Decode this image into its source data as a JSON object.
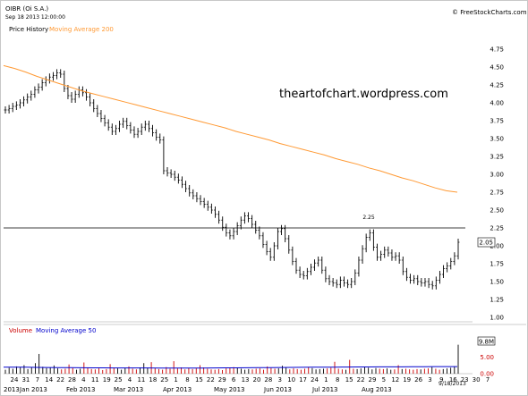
{
  "header": {
    "symbol": "OIBR (Oi S.A.)",
    "date": "Sep 18 2013 12:00:00",
    "credit": "© FreeStockCharts.com"
  },
  "legend": {
    "price_label": "Price History",
    "ma_label": "Moving Average 200",
    "volume_label": "Volume",
    "vol_ma_label": "Moving Average 50"
  },
  "watermark": "theartofchart.wordpress.com",
  "date_stamp": "9/18/2013",
  "colors": {
    "price": "#000000",
    "ma200": "#ff9933",
    "ma50": "#0000cc",
    "volume_down": "#cc0000",
    "volume_up": "#000000",
    "resistance": "#000000"
  },
  "chart_data": {
    "type": "line",
    "price_axis": {
      "ticks": [
        "4.75",
        "4.50",
        "4.25",
        "4.00",
        "3.75",
        "3.50",
        "3.25",
        "3.00",
        "2.75",
        "2.50",
        "2.25",
        "2.00",
        "1.75",
        "1.50",
        "1.25",
        "1.00"
      ],
      "ylim": [
        1.0,
        4.75
      ]
    },
    "volume_axis": {
      "ticks": [
        "9.8M",
        "5.00",
        "0.00"
      ],
      "ylim": [
        0,
        9.8
      ]
    },
    "x_ticks": [
      "24",
      "31",
      "7",
      "14",
      "22",
      "28",
      "4",
      "11",
      "19",
      "25",
      "4",
      "11",
      "18",
      "25",
      "1",
      "8",
      "15",
      "22",
      "29",
      "6",
      "13",
      "20",
      "28",
      "3",
      "10",
      "17",
      "24",
      "1",
      "8",
      "15",
      "22",
      "29",
      "5",
      "12",
      "19",
      "26",
      "3",
      "9",
      "16",
      "23",
      "30",
      "7"
    ],
    "month_labels": [
      "2013",
      "Jan 2013",
      "Feb 2013",
      "Mar 2013",
      "Apr 2013",
      "May 2013",
      "Jun 2013",
      "Jul 2013",
      "Aug 2013"
    ],
    "resistance_level": 2.25,
    "resistance_label": "2.25",
    "last_value": "2.05",
    "price_series": [
      3.9,
      3.92,
      3.95,
      3.97,
      4.0,
      4.04,
      4.08,
      4.12,
      4.18,
      4.22,
      4.28,
      4.32,
      4.36,
      4.38,
      4.42,
      4.4,
      4.2,
      4.1,
      4.05,
      4.12,
      4.18,
      4.14,
      4.08,
      4.0,
      3.92,
      3.85,
      3.78,
      3.72,
      3.66,
      3.6,
      3.64,
      3.7,
      3.74,
      3.68,
      3.62,
      3.56,
      3.6,
      3.66,
      3.7,
      3.64,
      3.58,
      3.52,
      3.48,
      3.05,
      3.02,
      3.0,
      2.96,
      2.92,
      2.86,
      2.8,
      2.74,
      2.7,
      2.66,
      2.62,
      2.58,
      2.54,
      2.5,
      2.44,
      2.36,
      2.26,
      2.18,
      2.14,
      2.2,
      2.28,
      2.36,
      2.42,
      2.38,
      2.3,
      2.22,
      2.14,
      2.02,
      1.92,
      1.84,
      2.0,
      2.2,
      2.24,
      2.1,
      1.94,
      1.78,
      1.66,
      1.6,
      1.58,
      1.64,
      1.7,
      1.76,
      1.8,
      1.66,
      1.54,
      1.5,
      1.48,
      1.46,
      1.52,
      1.48,
      1.46,
      1.5,
      1.62,
      1.8,
      1.96,
      2.12,
      2.18,
      1.98,
      1.84,
      1.88,
      1.94,
      1.9,
      1.84,
      1.86,
      1.8,
      1.64,
      1.56,
      1.52,
      1.54,
      1.5,
      1.48,
      1.5,
      1.46,
      1.44,
      1.52,
      1.6,
      1.68,
      1.72,
      1.78,
      1.86,
      2.05
    ],
    "ma200_series": [
      4.52,
      4.48,
      4.43,
      4.37,
      4.32,
      4.27,
      4.22,
      4.17,
      4.13,
      4.09,
      4.05,
      4.01,
      3.97,
      3.93,
      3.89,
      3.85,
      3.81,
      3.77,
      3.73,
      3.69,
      3.65,
      3.6,
      3.56,
      3.52,
      3.48,
      3.43,
      3.39,
      3.35,
      3.31,
      3.27,
      3.22,
      3.18,
      3.14,
      3.09,
      3.05,
      3.0,
      2.95,
      2.91,
      2.86,
      2.81,
      2.77,
      2.75
    ],
    "volume_series": [
      1.2,
      1.8,
      1.5,
      2.2,
      1.9,
      2.6,
      1.4,
      2.0,
      3.2,
      6.0,
      2.1,
      1.7,
      1.9,
      2.5,
      1.6,
      1.3,
      1.5,
      2.8,
      1.7,
      1.2,
      1.5,
      3.4,
      1.8,
      1.4,
      1.3,
      1.6,
      1.1,
      1.4,
      2.9,
      1.8,
      1.6,
      1.2,
      1.7,
      2.2,
      1.5,
      1.3,
      1.9,
      3.2,
      1.8,
      3.5,
      1.6,
      1.4,
      1.2,
      2.0,
      1.5,
      3.8,
      1.6,
      1.9,
      1.3,
      1.7,
      1.4,
      1.6,
      2.6,
      1.9,
      1.5,
      1.3,
      1.2,
      1.4,
      1.1,
      1.6,
      1.9,
      2.0,
      1.8,
      1.5,
      1.2,
      1.4,
      1.3,
      1.5,
      1.6,
      1.2,
      2.2,
      1.7,
      1.5,
      1.6,
      2.4,
      1.8,
      1.3,
      1.6,
      1.4,
      1.2,
      1.5,
      2.0,
      1.7,
      1.3,
      1.4,
      1.5,
      1.6,
      1.8,
      3.6,
      1.5,
      1.3,
      1.2,
      4.2,
      1.5,
      1.4,
      1.6,
      2.0,
      1.8,
      1.3,
      1.7,
      1.5,
      1.4,
      1.6,
      1.2,
      1.3,
      2.6,
      1.4,
      1.5,
      1.3,
      1.2,
      1.4,
      1.3,
      1.5,
      1.6,
      2.0,
      1.5,
      1.2,
      1.4,
      1.6,
      1.8,
      2.2,
      8.8
    ],
    "volume_ma50_series": [
      2.0,
      2.0,
      1.95,
      1.9,
      1.88,
      1.85,
      1.82,
      1.8,
      1.78,
      1.76,
      1.75,
      1.74,
      1.74,
      1.73,
      1.72,
      1.71,
      1.7,
      1.7,
      1.72,
      1.74,
      1.76,
      1.78,
      1.8,
      1.82,
      1.85,
      1.88,
      1.9,
      1.92,
      1.95,
      1.97,
      2.0,
      2.02,
      2.04,
      2.05,
      2.06,
      2.07,
      2.08,
      2.1,
      2.12,
      2.14,
      2.15,
      2.16
    ]
  }
}
